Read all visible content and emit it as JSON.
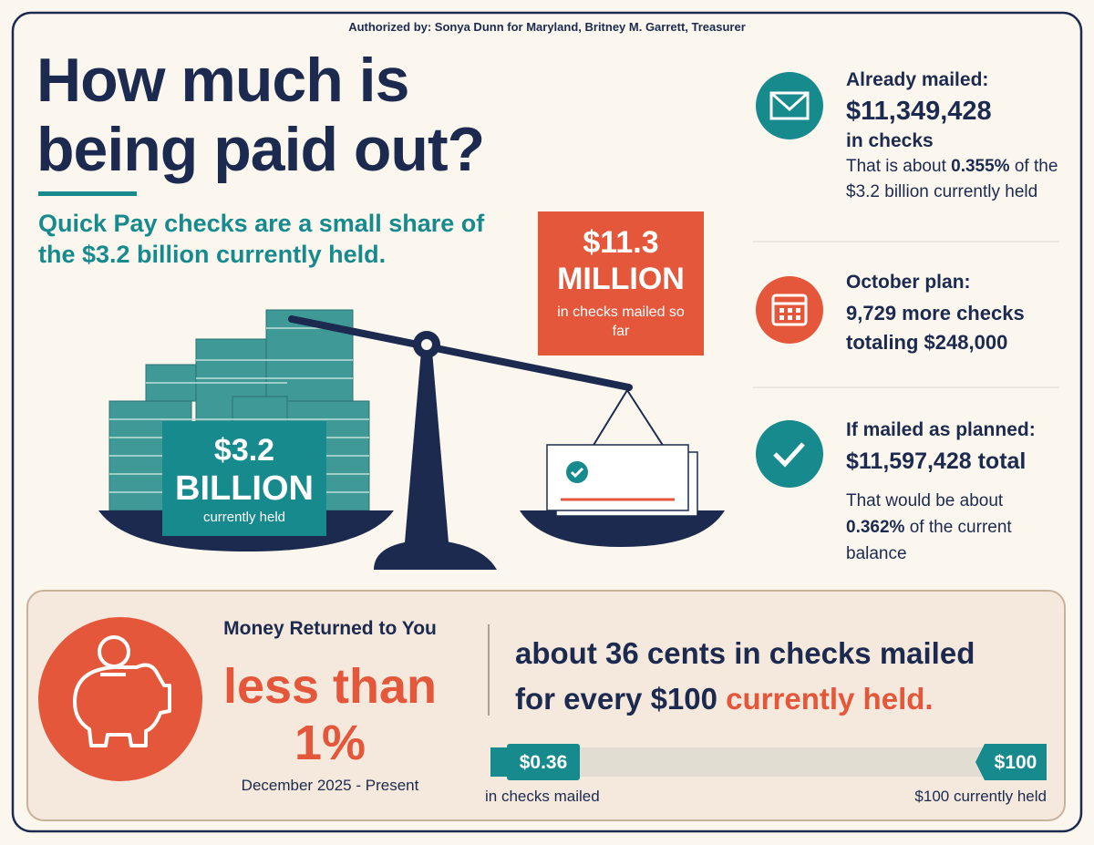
{
  "header": {
    "authorization": "Authorized by: Sonya Dunn for Maryland, Britney M. Garrett, Treasurer",
    "title_line1": "How much is",
    "title_line2": "being paid out?",
    "subtitle": "Quick Pay checks are a small share of the $3.2 billion currently held."
  },
  "scale": {
    "held": {
      "amount": "$3.2",
      "unit": "BILLION",
      "caption": "currently held"
    },
    "mailed": {
      "amount": "$11.3",
      "unit": "MILLION",
      "caption": "in checks mailed so far"
    }
  },
  "facts": [
    {
      "heading": "Already mailed:",
      "amount": "$11,349,428",
      "amount_suffix": "in checks",
      "note_before": "That is about",
      "note_emphasis": "0.355%",
      "note_after": "of the $3.2 billion currently held"
    },
    {
      "heading": "October plan:",
      "detail": "9,729 more checks totaling $248,000"
    },
    {
      "heading": "If mailed as planned:",
      "amount": "$11,597,428 total",
      "note_before": "That would be about",
      "note_emphasis": "0.362%",
      "note_after": "of the current balance"
    }
  ],
  "summary": {
    "label": "Money Returned to You",
    "headline": "less than 1%",
    "period": "December 2025 - Present",
    "statement_line1": "about 36 cents in checks mailed",
    "statement_line2": "for every $100",
    "statement_highlight": "currently held.",
    "bar": {
      "left_value": "$0.36",
      "left_caption": "in checks mailed",
      "right_value": "$100",
      "right_caption": "$100 currently held"
    }
  }
}
